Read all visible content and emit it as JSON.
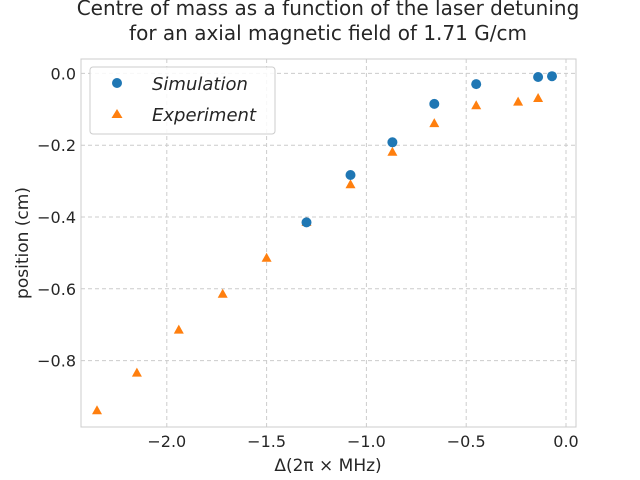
{
  "chart_data": {
    "type": "scatter",
    "title_lines": [
      "Centre of mass as a function of the laser detuning",
      "for an axial magnetic field of 1.71 G/cm"
    ],
    "xlabel": "Δ(2π × MHz)",
    "ylabel": "position (cm)",
    "xlim": [
      -2.43,
      0.05
    ],
    "ylim": [
      -0.985,
      0.04
    ],
    "x_ticks": [
      -2.0,
      -1.5,
      -1.0,
      -0.5,
      0.0
    ],
    "x_tick_labels": [
      "−2.0",
      "−1.5",
      "−1.0",
      "−0.5",
      "0.0"
    ],
    "y_ticks": [
      0.0,
      -0.2,
      -0.4,
      -0.6,
      -0.8
    ],
    "y_tick_labels": [
      "0.0",
      "−0.2",
      "−0.4",
      "−0.6",
      "−0.8"
    ],
    "grid": true,
    "legend_position": "top-left",
    "series": [
      {
        "name": "Simulation",
        "marker": "circle",
        "color": "#1f77b4",
        "x": [
          -1.3,
          -1.08,
          -0.87,
          -0.66,
          -0.45,
          -0.14,
          -0.07
        ],
        "y": [
          -0.415,
          -0.283,
          -0.192,
          -0.085,
          -0.03,
          -0.01,
          -0.008
        ]
      },
      {
        "name": "Experiment",
        "marker": "triangle",
        "color": "#ff7f0e",
        "x": [
          -2.35,
          -2.15,
          -1.94,
          -1.72,
          -1.5,
          -1.3,
          -1.08,
          -0.87,
          -0.66,
          -0.45,
          -0.24,
          -0.14
        ],
        "y": [
          -0.94,
          -0.835,
          -0.715,
          -0.615,
          -0.515,
          -0.415,
          -0.31,
          -0.22,
          -0.14,
          -0.09,
          -0.08,
          -0.07
        ]
      }
    ]
  }
}
